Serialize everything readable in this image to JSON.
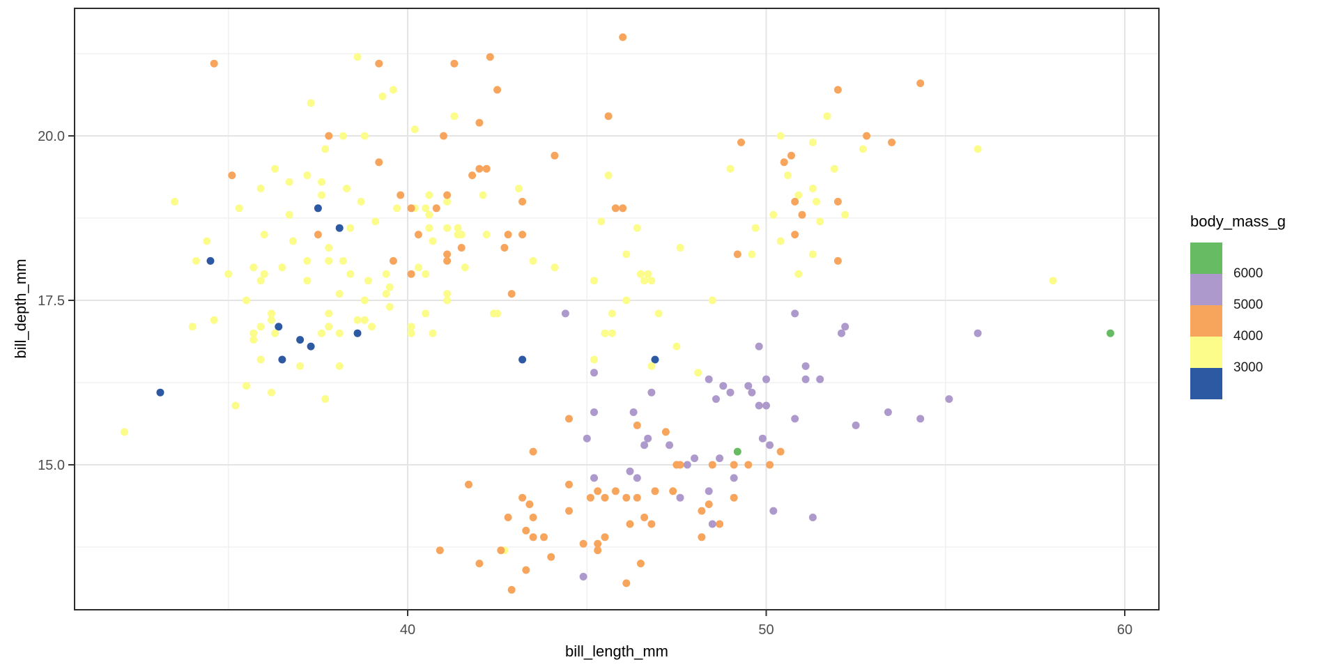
{
  "figure": {
    "xlabel": "bill_length_mm",
    "ylabel": "bill_depth_mm",
    "legend_title": "body_mass_g"
  },
  "chart_data": {
    "type": "scatter",
    "title": "",
    "xlabel": "bill_length_mm",
    "ylabel": "bill_depth_mm",
    "xlim": [
      30.7,
      61.0
    ],
    "ylim": [
      12.8,
      21.95
    ],
    "grid": true,
    "x_ticks": [
      40,
      50,
      60
    ],
    "x_tick_labels": [
      "40",
      "50",
      "60"
    ],
    "y_ticks": [
      15.0,
      17.5,
      20.0
    ],
    "y_tick_labels": [
      "15.0",
      "17.5",
      "20.0"
    ],
    "x_minor": [
      35,
      45,
      55
    ],
    "y_minor": [
      13.75,
      16.25,
      18.75,
      21.25
    ],
    "legend": {
      "title": "body_mass_g",
      "position": "right",
      "swatches_top_to_bottom": [
        "#67BC63",
        "#AD99CC",
        "#F7A55C",
        "#FCFC8B",
        "#2D59A3"
      ],
      "boundary_labels": [
        "6000",
        "5000",
        "4000",
        "3000"
      ]
    },
    "color_bins": [
      {
        "upper": 3000,
        "color": "#2D59A3",
        "range": "<=3000"
      },
      {
        "upper": 4000,
        "color": "#FCFC8B",
        "range": "3000-4000"
      },
      {
        "upper": 5000,
        "color": "#F7A55C",
        "range": "4000-5000"
      },
      {
        "upper": 6000,
        "color": "#AD99CC",
        "range": "5000-6000"
      },
      {
        "upper": 99999,
        "color": "#67BC63",
        "range": ">6000"
      }
    ],
    "style": {
      "background": "#FFFFFF",
      "panel_border": "#2B2B2B",
      "major_grid": "#E4E4E4",
      "minor_grid": "#EFEFEF",
      "tick_label_color": "#4D4D4D",
      "point_radius": 5.5
    },
    "points": [
      [
        36.4,
        17.1,
        2850
      ],
      [
        37.0,
        16.9,
        2900
      ],
      [
        37.3,
        16.8,
        2900
      ],
      [
        36.5,
        16.6,
        2850
      ],
      [
        38.6,
        17.0,
        2900
      ],
      [
        33.1,
        16.1,
        2900
      ],
      [
        34.5,
        18.1,
        2900
      ],
      [
        37.5,
        18.9,
        2975
      ],
      [
        38.1,
        18.6,
        2925
      ],
      [
        43.2,
        16.6,
        2900
      ],
      [
        46.9,
        16.6,
        2700
      ],
      [
        38.6,
        21.2,
        3800
      ],
      [
        39.3,
        20.6,
        3650
      ],
      [
        39.6,
        20.7,
        3900
      ],
      [
        37.3,
        20.5,
        3775
      ],
      [
        40.2,
        20.1,
        3975
      ],
      [
        38.2,
        20.0,
        3900
      ],
      [
        38.8,
        20.0,
        3900
      ],
      [
        51.7,
        20.3,
        3900
      ],
      [
        52.7,
        19.8,
        3725
      ],
      [
        51.3,
        19.9,
        3700
      ],
      [
        55.9,
        19.8,
        4000
      ],
      [
        50.4,
        20.0,
        3300
      ],
      [
        41.3,
        20.3,
        3900
      ],
      [
        37.7,
        19.8,
        3500
      ],
      [
        36.3,
        19.5,
        3450
      ],
      [
        36.7,
        19.3,
        3750
      ],
      [
        37.2,
        19.4,
        3900
      ],
      [
        35.9,
        19.2,
        3300
      ],
      [
        37.6,
        19.3,
        3300
      ],
      [
        37.6,
        19.1,
        3750
      ],
      [
        38.3,
        19.2,
        3950
      ],
      [
        38.7,
        19.0,
        3450
      ],
      [
        33.5,
        19.0,
        3600
      ],
      [
        35.3,
        18.9,
        3800
      ],
      [
        36.7,
        18.8,
        3800
      ],
      [
        38.4,
        18.6,
        3475
      ],
      [
        36.0,
        18.5,
        3450
      ],
      [
        36.8,
        18.4,
        3700
      ],
      [
        34.4,
        18.4,
        3325
      ],
      [
        37.8,
        18.3,
        3400
      ],
      [
        34.1,
        18.1,
        3475
      ],
      [
        35.0,
        17.9,
        3450
      ],
      [
        35.7,
        18.0,
        3550
      ],
      [
        36.0,
        17.9,
        3450
      ],
      [
        35.9,
        17.8,
        3350
      ],
      [
        36.5,
        18.0,
        3450
      ],
      [
        37.2,
        18.1,
        3900
      ],
      [
        37.8,
        18.1,
        3700
      ],
      [
        38.2,
        18.1,
        3900
      ],
      [
        37.2,
        17.8,
        3300
      ],
      [
        38.4,
        17.9,
        3475
      ],
      [
        38.9,
        17.8,
        3625
      ],
      [
        39.4,
        17.9,
        3700
      ],
      [
        39.5,
        17.7,
        3550
      ],
      [
        38.1,
        17.6,
        3425
      ],
      [
        38.8,
        17.5,
        3275
      ],
      [
        39.4,
        17.6,
        3550
      ],
      [
        35.5,
        17.5,
        3350
      ],
      [
        39.1,
        18.7,
        3750
      ],
      [
        40.6,
        19.1,
        3950
      ],
      [
        40.5,
        18.9,
        3950
      ],
      [
        40.6,
        18.8,
        3250
      ],
      [
        39.7,
        18.9,
        3550
      ],
      [
        40.2,
        18.9,
        3600
      ],
      [
        41.1,
        19.0,
        3425
      ],
      [
        42.1,
        19.1,
        3850
      ],
      [
        43.1,
        19.2,
        3900
      ],
      [
        45.6,
        19.4,
        3525
      ],
      [
        49.0,
        19.5,
        3950
      ],
      [
        50.6,
        19.4,
        3800
      ],
      [
        51.9,
        19.5,
        3950
      ],
      [
        51.3,
        19.2,
        3650
      ],
      [
        50.9,
        19.1,
        3950
      ],
      [
        51.4,
        19.0,
        3950
      ],
      [
        45.4,
        18.7,
        3525
      ],
      [
        46.4,
        18.6,
        3450
      ],
      [
        49.7,
        18.6,
        3600
      ],
      [
        50.2,
        18.8,
        3800
      ],
      [
        52.2,
        18.8,
        3450
      ],
      [
        51.5,
        18.7,
        3250
      ],
      [
        40.6,
        18.6,
        3550
      ],
      [
        41.1,
        18.6,
        3325
      ],
      [
        41.4,
        18.6,
        3600
      ],
      [
        41.5,
        18.5,
        4000
      ],
      [
        41.4,
        18.5,
        3700
      ],
      [
        40.7,
        18.4,
        3700
      ],
      [
        42.2,
        18.5,
        3550
      ],
      [
        43.5,
        18.1,
        3400
      ],
      [
        44.1,
        18.0,
        4000
      ],
      [
        40.3,
        18.0,
        3250
      ],
      [
        40.5,
        17.9,
        3200
      ],
      [
        41.6,
        18.0,
        3950
      ],
      [
        46.1,
        18.2,
        3550
      ],
      [
        47.6,
        18.3,
        3850
      ],
      [
        49.6,
        18.2,
        3775
      ],
      [
        50.4,
        18.4,
        3400
      ],
      [
        51.3,
        18.2,
        3750
      ],
      [
        39.5,
        17.4,
        3800
      ],
      [
        41.1,
        17.6,
        3200
      ],
      [
        41.1,
        17.5,
        3425
      ],
      [
        42.4,
        17.3,
        3600
      ],
      [
        42.5,
        17.3,
        3350
      ],
      [
        45.2,
        17.8,
        3950
      ],
      [
        46.5,
        17.9,
        3500
      ],
      [
        46.6,
        17.8,
        3500
      ],
      [
        46.7,
        17.9,
        3950
      ],
      [
        46.8,
        17.8,
        3700
      ],
      [
        46.1,
        17.5,
        3600
      ],
      [
        48.5,
        17.5,
        3400
      ],
      [
        50.9,
        17.9,
        3675
      ],
      [
        58.0,
        17.8,
        3700
      ],
      [
        34.0,
        17.1,
        3400
      ],
      [
        34.6,
        17.2,
        3200
      ],
      [
        35.7,
        17.0,
        3025
      ],
      [
        35.7,
        16.9,
        3150
      ],
      [
        35.9,
        17.1,
        3325
      ],
      [
        36.2,
        17.3,
        3300
      ],
      [
        36.2,
        17.2,
        3150
      ],
      [
        36.3,
        17.0,
        3200
      ],
      [
        37.6,
        17.0,
        3600
      ],
      [
        37.8,
        17.1,
        3300
      ],
      [
        37.8,
        17.3,
        3700
      ],
      [
        38.1,
        17.0,
        3175
      ],
      [
        38.6,
        17.2,
        3550
      ],
      [
        38.8,
        17.2,
        3800
      ],
      [
        39.0,
        17.1,
        3050
      ],
      [
        40.1,
        17.1,
        3100
      ],
      [
        40.1,
        17.0,
        3050
      ],
      [
        40.5,
        17.3,
        3200
      ],
      [
        40.7,
        17.0,
        3950
      ],
      [
        45.7,
        17.3,
        3600
      ],
      [
        45.7,
        17.0,
        3650
      ],
      [
        45.5,
        17.0,
        3500
      ],
      [
        47.0,
        17.3,
        3725
      ],
      [
        47.5,
        16.8,
        3900
      ],
      [
        35.9,
        16.6,
        3050
      ],
      [
        37.0,
        16.5,
        3425
      ],
      [
        38.1,
        16.5,
        3825
      ],
      [
        45.2,
        16.6,
        3250
      ],
      [
        46.8,
        16.5,
        3650
      ],
      [
        48.1,
        16.4,
        3325
      ],
      [
        35.5,
        16.2,
        3350
      ],
      [
        36.2,
        16.1,
        3550
      ],
      [
        35.2,
        15.9,
        3050
      ],
      [
        37.7,
        16.0,
        3075
      ],
      [
        32.1,
        15.5,
        3050
      ],
      [
        42.7,
        13.7,
        3950
      ],
      [
        34.6,
        21.1,
        4400
      ],
      [
        39.2,
        21.1,
        4150
      ],
      [
        41.3,
        21.1,
        4400
      ],
      [
        42.3,
        21.2,
        4150
      ],
      [
        46.0,
        21.5,
        4200
      ],
      [
        42.5,
        20.7,
        4500
      ],
      [
        42.0,
        20.2,
        4250
      ],
      [
        41.0,
        20.0,
        4725
      ],
      [
        37.8,
        20.0,
        4250
      ],
      [
        45.6,
        20.3,
        4800
      ],
      [
        49.3,
        19.9,
        4050
      ],
      [
        52.8,
        20.0,
        4550
      ],
      [
        53.5,
        19.9,
        4500
      ],
      [
        54.3,
        20.8,
        4300
      ],
      [
        52.0,
        20.7,
        4800
      ],
      [
        39.2,
        19.6,
        4675
      ],
      [
        44.1,
        19.7,
        4400
      ],
      [
        42.0,
        19.5,
        4050
      ],
      [
        42.2,
        19.5,
        4275
      ],
      [
        41.8,
        19.4,
        4450
      ],
      [
        35.1,
        19.4,
        4200
      ],
      [
        43.2,
        19.0,
        4775
      ],
      [
        41.1,
        19.1,
        4100
      ],
      [
        40.1,
        18.9,
        4300
      ],
      [
        40.8,
        18.9,
        4300
      ],
      [
        45.8,
        18.9,
        4150
      ],
      [
        46.0,
        18.9,
        4150
      ],
      [
        39.8,
        19.1,
        4650
      ],
      [
        37.5,
        18.5,
        4200
      ],
      [
        40.3,
        18.5,
        4350
      ],
      [
        41.5,
        18.3,
        4300
      ],
      [
        41.1,
        18.2,
        4050
      ],
      [
        41.1,
        18.1,
        4300
      ],
      [
        42.8,
        18.5,
        4250
      ],
      [
        43.2,
        18.5,
        4100
      ],
      [
        42.7,
        18.3,
        4075
      ],
      [
        39.6,
        18.1,
        4650
      ],
      [
        40.1,
        17.9,
        4400
      ],
      [
        42.9,
        17.6,
        4700
      ],
      [
        50.7,
        19.7,
        4050
      ],
      [
        50.5,
        19.6,
        4450
      ],
      [
        50.8,
        19.0,
        4100
      ],
      [
        52.0,
        19.0,
        4150
      ],
      [
        50.8,
        18.5,
        4450
      ],
      [
        51.0,
        18.8,
        4100
      ],
      [
        52.0,
        18.1,
        4150
      ],
      [
        49.2,
        18.2,
        4400
      ],
      [
        44.5,
        15.7,
        4875
      ],
      [
        46.4,
        15.6,
        4700
      ],
      [
        47.2,
        15.5,
        4975
      ],
      [
        43.5,
        15.2,
        4650
      ],
      [
        50.4,
        15.2,
        4800
      ],
      [
        47.5,
        15.0,
        4880
      ],
      [
        47.6,
        15.0,
        4850
      ],
      [
        48.5,
        15.0,
        4850
      ],
      [
        49.1,
        15.0,
        4800
      ],
      [
        49.5,
        15.0,
        4900
      ],
      [
        50.1,
        15.0,
        4950
      ],
      [
        41.7,
        14.7,
        4700
      ],
      [
        44.5,
        14.7,
        4850
      ],
      [
        45.3,
        14.6,
        4500
      ],
      [
        45.8,
        14.6,
        4200
      ],
      [
        46.9,
        14.6,
        4875
      ],
      [
        47.4,
        14.6,
        4725
      ],
      [
        43.2,
        14.5,
        4450
      ],
      [
        43.4,
        14.4,
        4900
      ],
      [
        45.1,
        14.5,
        4400
      ],
      [
        45.5,
        14.5,
        4700
      ],
      [
        46.1,
        14.5,
        4400
      ],
      [
        46.4,
        14.5,
        4550
      ],
      [
        44.5,
        14.3,
        4300
      ],
      [
        48.2,
        14.3,
        4600
      ],
      [
        48.4,
        14.4,
        4625
      ],
      [
        49.1,
        14.5,
        4625
      ],
      [
        42.8,
        14.2,
        4700
      ],
      [
        43.5,
        14.2,
        4700
      ],
      [
        46.6,
        14.2,
        4850
      ],
      [
        46.2,
        14.1,
        4375
      ],
      [
        46.8,
        14.1,
        4600
      ],
      [
        48.7,
        14.1,
        4450
      ],
      [
        43.3,
        14.0,
        4575
      ],
      [
        43.5,
        13.9,
        4650
      ],
      [
        43.8,
        13.9,
        4300
      ],
      [
        48.2,
        13.9,
        4700
      ],
      [
        44.9,
        13.8,
        4750
      ],
      [
        45.3,
        13.8,
        4300
      ],
      [
        45.3,
        13.7,
        4350
      ],
      [
        45.5,
        13.9,
        4300
      ],
      [
        40.9,
        13.7,
        4650
      ],
      [
        42.6,
        13.7,
        4950
      ],
      [
        42.0,
        13.5,
        4150
      ],
      [
        44.0,
        13.6,
        4250
      ],
      [
        43.3,
        13.4,
        4400
      ],
      [
        46.5,
        13.5,
        4550
      ],
      [
        46.1,
        13.2,
        4500
      ],
      [
        42.9,
        13.1,
        5000
      ],
      [
        44.4,
        17.3,
        5250
      ],
      [
        52.2,
        17.1,
        5400
      ],
      [
        52.1,
        17.0,
        5550
      ],
      [
        55.9,
        17.0,
        5600
      ],
      [
        50.8,
        17.3,
        5700
      ],
      [
        49.8,
        16.8,
        5700
      ],
      [
        45.2,
        16.4,
        5950
      ],
      [
        48.4,
        16.3,
        5400
      ],
      [
        51.1,
        16.5,
        5250
      ],
      [
        51.1,
        16.3,
        5850
      ],
      [
        51.5,
        16.3,
        5500
      ],
      [
        48.8,
        16.2,
        6000
      ],
      [
        49.5,
        16.2,
        5800
      ],
      [
        49.6,
        16.1,
        5650
      ],
      [
        49.0,
        16.1,
        5550
      ],
      [
        48.6,
        16.0,
        5800
      ],
      [
        55.1,
        16.0,
        5850
      ],
      [
        50.0,
        16.3,
        5700
      ],
      [
        49.8,
        15.9,
        5950
      ],
      [
        50.0,
        15.9,
        5350
      ],
      [
        46.8,
        16.1,
        5500
      ],
      [
        45.2,
        15.8,
        5300
      ],
      [
        46.3,
        15.8,
        5050
      ],
      [
        53.4,
        15.8,
        5500
      ],
      [
        50.8,
        15.7,
        5850
      ],
      [
        54.3,
        15.7,
        5650
      ],
      [
        52.5,
        15.6,
        5450
      ],
      [
        45.0,
        15.4,
        5050
      ],
      [
        46.7,
        15.4,
        5200
      ],
      [
        46.6,
        15.3,
        5300
      ],
      [
        47.3,
        15.3,
        5250
      ],
      [
        49.9,
        15.4,
        5550
      ],
      [
        50.1,
        15.3,
        5250
      ],
      [
        48.0,
        15.1,
        5150
      ],
      [
        48.7,
        15.1,
        5350
      ],
      [
        47.8,
        15.0,
        5650
      ],
      [
        49.1,
        14.8,
        5150
      ],
      [
        46.2,
        14.9,
        5300
      ],
      [
        46.4,
        14.8,
        5400
      ],
      [
        45.2,
        14.8,
        5200
      ],
      [
        48.4,
        14.6,
        5850
      ],
      [
        47.6,
        14.5,
        5400
      ],
      [
        48.5,
        14.1,
        5300
      ],
      [
        50.2,
        14.3,
        5800
      ],
      [
        51.3,
        14.2,
        5300
      ],
      [
        44.9,
        13.3,
        5100
      ],
      [
        49.2,
        15.2,
        6300
      ],
      [
        59.6,
        17.0,
        6050
      ]
    ]
  }
}
